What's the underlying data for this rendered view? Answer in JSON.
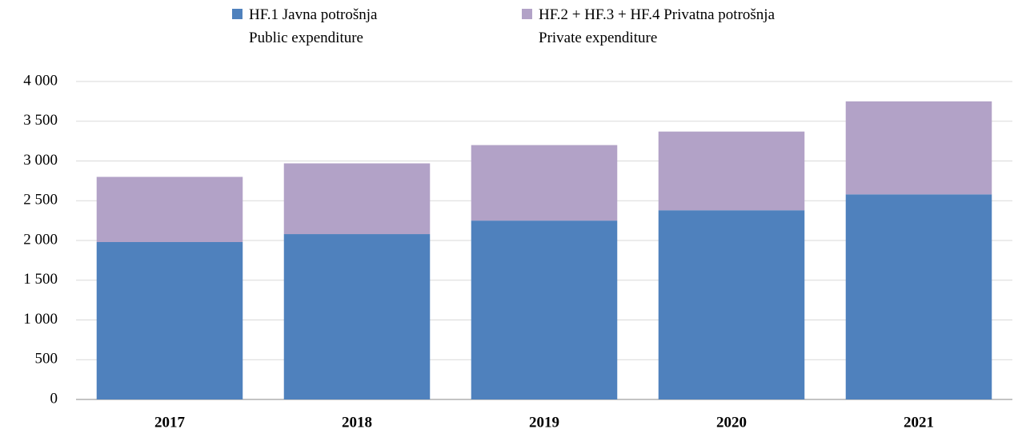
{
  "chart_data": {
    "type": "stacked_bar",
    "categories": [
      "2017",
      "2018",
      "2019",
      "2020",
      "2021"
    ],
    "series": [
      {
        "name": "HF.1 Javna potrošnja\nPublic expenditure",
        "color": "#4f81bd",
        "values": [
          1980,
          2080,
          2250,
          2380,
          2580
        ]
      },
      {
        "name": "HF.2 + HF.3 + HF.4 Privatna potrošnja\nPrivate expenditure",
        "color": "#b2a2c7",
        "values": [
          820,
          890,
          950,
          990,
          1170
        ]
      }
    ],
    "ylim": [
      0,
      4000
    ],
    "yticks": [
      0,
      500,
      {
        "value": 1000,
        "label": "1 000"
      },
      {
        "value": 1500,
        "label": "1 500"
      },
      {
        "value": 2000,
        "label": "2 000"
      },
      {
        "value": 2500,
        "label": "2 500"
      },
      {
        "value": 3000,
        "label": "3 000"
      },
      {
        "value": 3500,
        "label": "3 500"
      },
      {
        "value": 4000,
        "label": "4 000"
      }
    ],
    "grid": true,
    "legend": "top"
  }
}
